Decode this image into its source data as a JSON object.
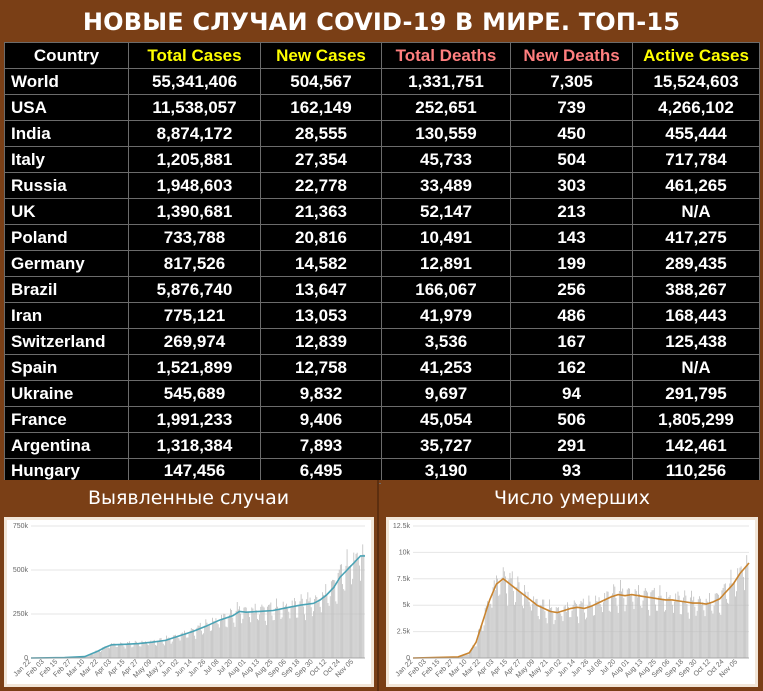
{
  "title": "НОВЫЕ СЛУЧАИ COVID-19 В МИРЕ. ТОП-15",
  "colors": {
    "background": "#7a3f16",
    "table_background": "#000000",
    "header_country": "#ffffff",
    "header_total_cases": "#ffff00",
    "header_new_cases": "#ffff00",
    "header_total_deaths": "#ff7f7f",
    "header_new_deaths": "#ff7f7f",
    "header_active_cases": "#ffff00",
    "left_chart_line": "#4aa3b5",
    "right_chart_line": "#c9842f",
    "bars": "#bdbdbd"
  },
  "table": {
    "headers": [
      "Country",
      "Total Cases",
      "New Cases",
      "Total Deaths",
      "New Deaths",
      "Active Cases"
    ],
    "rows": [
      [
        "World",
        "55,341,406",
        "504,567",
        "1,331,751",
        "7,305",
        "15,524,603"
      ],
      [
        "USA",
        "11,538,057",
        "162,149",
        "252,651",
        "739",
        "4,266,102"
      ],
      [
        "India",
        "8,874,172",
        "28,555",
        "130,559",
        "450",
        "455,444"
      ],
      [
        "Italy",
        "1,205,881",
        "27,354",
        "45,733",
        "504",
        "717,784"
      ],
      [
        "Russia",
        "1,948,603",
        "22,778",
        "33,489",
        "303",
        "461,265"
      ],
      [
        "UK",
        "1,390,681",
        "21,363",
        "52,147",
        "213",
        "N/A"
      ],
      [
        "Poland",
        "733,788",
        "20,816",
        "10,491",
        "143",
        "417,275"
      ],
      [
        "Germany",
        "817,526",
        "14,582",
        "12,891",
        "199",
        "289,435"
      ],
      [
        "Brazil",
        "5,876,740",
        "13,647",
        "166,067",
        "256",
        "388,267"
      ],
      [
        "Iran",
        "775,121",
        "13,053",
        "41,979",
        "486",
        "168,443"
      ],
      [
        "Switzerland",
        "269,974",
        "12,839",
        "3,536",
        "167",
        "125,438"
      ],
      [
        "Spain",
        "1,521,899",
        "12,758",
        "41,253",
        "162",
        "N/A"
      ],
      [
        "Ukraine",
        "545,689",
        "9,832",
        "9,697",
        "94",
        "291,795"
      ],
      [
        "France",
        "1,991,233",
        "9,406",
        "45,054",
        "506",
        "1,805,299"
      ],
      [
        "Argentina",
        "1,318,384",
        "7,893",
        "35,727",
        "291",
        "142,461"
      ],
      [
        "Hungary",
        "147,456",
        "6,495",
        "3,190",
        "93",
        "110,256"
      ]
    ]
  },
  "panels": {
    "left_title": "Выявленные случаи",
    "right_title": "Число умерших"
  },
  "chart_data": [
    {
      "type": "bar",
      "title": "Выявленные случаи",
      "xlabel": "",
      "ylabel": "",
      "ylim": [
        0,
        750000
      ],
      "yticks": [
        "0",
        "250k",
        "500k",
        "750k"
      ],
      "x_ticks": [
        "Jan 22",
        "Feb 03",
        "Feb 15",
        "Feb 27",
        "Mar 10",
        "Mar 22",
        "Apr 03",
        "Apr 15",
        "Apr 27",
        "May 09",
        "May 21",
        "Jun 02",
        "Jun 14",
        "Jun 26",
        "Jul 08",
        "Jul 20",
        "Aug 01",
        "Aug 13",
        "Aug 25",
        "Sep 06",
        "Sep 18",
        "Sep 30",
        "Oct 12",
        "Oct 24",
        "Nov 05"
      ],
      "x_days": [
        0,
        12,
        24,
        36,
        48,
        60,
        72,
        84,
        96,
        108,
        120,
        132,
        144,
        156,
        168,
        180,
        192,
        204,
        216,
        228,
        240,
        252,
        264,
        276,
        288
      ],
      "total_days": 298,
      "trend_points": [
        [
          0,
          0
        ],
        [
          30,
          2000
        ],
        [
          48,
          8000
        ],
        [
          60,
          40000
        ],
        [
          66,
          60000
        ],
        [
          72,
          75000
        ],
        [
          84,
          78000
        ],
        [
          96,
          82000
        ],
        [
          108,
          90000
        ],
        [
          120,
          100000
        ],
        [
          132,
          125000
        ],
        [
          144,
          150000
        ],
        [
          156,
          180000
        ],
        [
          168,
          215000
        ],
        [
          180,
          240000
        ],
        [
          186,
          265000
        ],
        [
          192,
          260000
        ],
        [
          204,
          265000
        ],
        [
          216,
          270000
        ],
        [
          228,
          285000
        ],
        [
          240,
          300000
        ],
        [
          252,
          310000
        ],
        [
          258,
          330000
        ],
        [
          264,
          360000
        ],
        [
          270,
          400000
        ],
        [
          276,
          460000
        ],
        [
          282,
          500000
        ],
        [
          288,
          540000
        ],
        [
          294,
          580000
        ],
        [
          298,
          580000
        ]
      ]
    },
    {
      "type": "bar",
      "title": "Число умерших",
      "xlabel": "",
      "ylabel": "",
      "ylim": [
        0,
        12500
      ],
      "yticks": [
        "0",
        "2.5k",
        "5k",
        "7.5k",
        "10k",
        "12.5k"
      ],
      "x_ticks": [
        "Jan 22",
        "Feb 03",
        "Feb 15",
        "Feb 27",
        "Mar 10",
        "Mar 22",
        "Apr 03",
        "Apr 15",
        "Apr 27",
        "May 09",
        "May 21",
        "Jun 02",
        "Jun 14",
        "Jun 26",
        "Jul 08",
        "Jul 20",
        "Aug 01",
        "Aug 13",
        "Aug 25",
        "Sep 06",
        "Sep 18",
        "Sep 30",
        "Oct 12",
        "Oct 24",
        "Nov 05"
      ],
      "x_days": [
        0,
        12,
        24,
        36,
        48,
        60,
        72,
        84,
        96,
        108,
        120,
        132,
        144,
        156,
        168,
        180,
        192,
        204,
        216,
        228,
        240,
        252,
        264,
        276,
        288
      ],
      "total_days": 298,
      "trend_points": [
        [
          0,
          0
        ],
        [
          40,
          100
        ],
        [
          50,
          500
        ],
        [
          56,
          1500
        ],
        [
          62,
          3500
        ],
        [
          68,
          5500
        ],
        [
          74,
          7000
        ],
        [
          80,
          7500
        ],
        [
          86,
          7000
        ],
        [
          92,
          6500
        ],
        [
          98,
          6000
        ],
        [
          104,
          5500
        ],
        [
          110,
          5000
        ],
        [
          116,
          4700
        ],
        [
          122,
          4400
        ],
        [
          128,
          4300
        ],
        [
          134,
          4500
        ],
        [
          140,
          4700
        ],
        [
          146,
          4800
        ],
        [
          152,
          4700
        ],
        [
          158,
          4900
        ],
        [
          164,
          5200
        ],
        [
          170,
          5500
        ],
        [
          176,
          5800
        ],
        [
          182,
          6000
        ],
        [
          188,
          5900
        ],
        [
          194,
          6000
        ],
        [
          200,
          5900
        ],
        [
          206,
          5800
        ],
        [
          212,
          5700
        ],
        [
          218,
          5600
        ],
        [
          224,
          5500
        ],
        [
          230,
          5500
        ],
        [
          236,
          5400
        ],
        [
          242,
          5300
        ],
        [
          248,
          5200
        ],
        [
          254,
          5200
        ],
        [
          260,
          5100
        ],
        [
          266,
          5300
        ],
        [
          272,
          5600
        ],
        [
          278,
          6300
        ],
        [
          284,
          7000
        ],
        [
          290,
          8000
        ],
        [
          298,
          9000
        ]
      ]
    }
  ]
}
